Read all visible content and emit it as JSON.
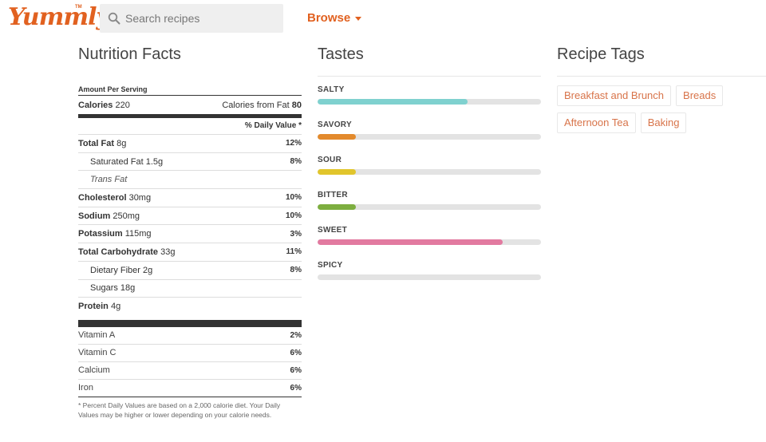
{
  "header": {
    "logo_text": "Yummly",
    "logo_tm": "TM",
    "search_placeholder": "Search recipes",
    "browse_label": "Browse",
    "brand_color": "#e16120"
  },
  "nutrition": {
    "title": "Nutrition Facts",
    "amount_per_serving": "Amount Per Serving",
    "calories_label": "Calories",
    "calories_value": "220",
    "calories_fat_label": "Calories from Fat",
    "calories_fat_value": "80",
    "daily_value_header": "% Daily Value *",
    "rows": [
      {
        "label": "Total Fat",
        "amount": "8g",
        "pct": "12%",
        "bold": true,
        "indent": false,
        "italic": false
      },
      {
        "label": "Saturated Fat",
        "amount": "1.5g",
        "pct": "8%",
        "bold": false,
        "indent": true,
        "italic": false
      },
      {
        "label": "Trans Fat",
        "amount": "",
        "pct": "",
        "bold": false,
        "indent": true,
        "italic": true
      },
      {
        "label": "Cholesterol",
        "amount": "30mg",
        "pct": "10%",
        "bold": true,
        "indent": false,
        "italic": false
      },
      {
        "label": "Sodium",
        "amount": "250mg",
        "pct": "10%",
        "bold": true,
        "indent": false,
        "italic": false
      },
      {
        "label": "Potassium",
        "amount": "115mg",
        "pct": "3%",
        "bold": true,
        "indent": false,
        "italic": false
      },
      {
        "label": "Total Carbohydrate",
        "amount": "33g",
        "pct": "11%",
        "bold": true,
        "indent": false,
        "italic": false
      },
      {
        "label": "Dietary Fiber",
        "amount": "2g",
        "pct": "8%",
        "bold": false,
        "indent": true,
        "italic": false
      },
      {
        "label": "Sugars",
        "amount": "18g",
        "pct": "",
        "bold": false,
        "indent": true,
        "italic": false
      },
      {
        "label": "Protein",
        "amount": "4g",
        "pct": "",
        "bold": true,
        "indent": false,
        "italic": false
      }
    ],
    "vitamins": [
      {
        "label": "Vitamin A",
        "pct": "2%"
      },
      {
        "label": "Vitamin C",
        "pct": "6%"
      },
      {
        "label": "Calcium",
        "pct": "6%"
      },
      {
        "label": "Iron",
        "pct": "6%"
      }
    ],
    "footnote": "* Percent Daily Values are based on a 2,000 calorie diet. Your Daily Values may be higher or lower depending on your calorie needs."
  },
  "tastes": {
    "title": "Tastes",
    "track_color": "#e3e3e3",
    "items": [
      {
        "label": "SALTY",
        "level": 0.67,
        "color": "#7fd1cf"
      },
      {
        "label": "SAVORY",
        "level": 0.17,
        "color": "#e38a2c"
      },
      {
        "label": "SOUR",
        "level": 0.17,
        "color": "#e1c52c"
      },
      {
        "label": "BITTER",
        "level": 0.17,
        "color": "#7dae3f"
      },
      {
        "label": "SWEET",
        "level": 0.83,
        "color": "#e27aa0"
      },
      {
        "label": "SPICY",
        "level": 0,
        "color": "#e3e3e3"
      }
    ]
  },
  "tags": {
    "title": "Recipe Tags",
    "items": [
      "Breakfast and Brunch",
      "Breads",
      "Afternoon Tea",
      "Baking"
    ]
  }
}
